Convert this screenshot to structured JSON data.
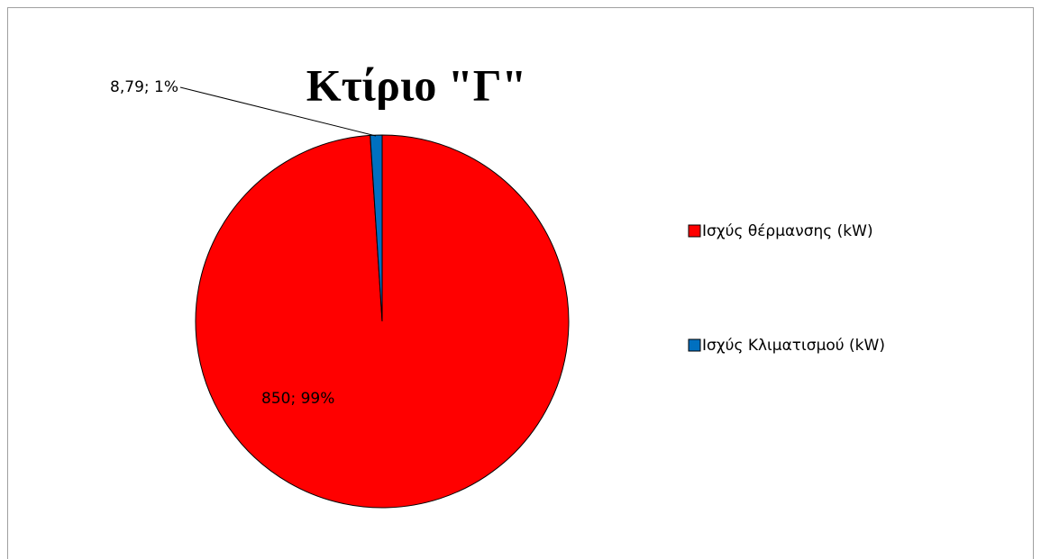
{
  "chart_data": {
    "type": "pie",
    "title": "Κτίριο \"Γ\"",
    "categories": [
      "Ισχύς θέρμανσης (kW)",
      "Ισχύς Κλιματισμού (kW)"
    ],
    "values": [
      850,
      8.79
    ],
    "value_labels": [
      "850; 99%",
      "8,79; 1%"
    ],
    "colors": [
      "#ff0000",
      "#0070c0"
    ],
    "legend": "right"
  }
}
